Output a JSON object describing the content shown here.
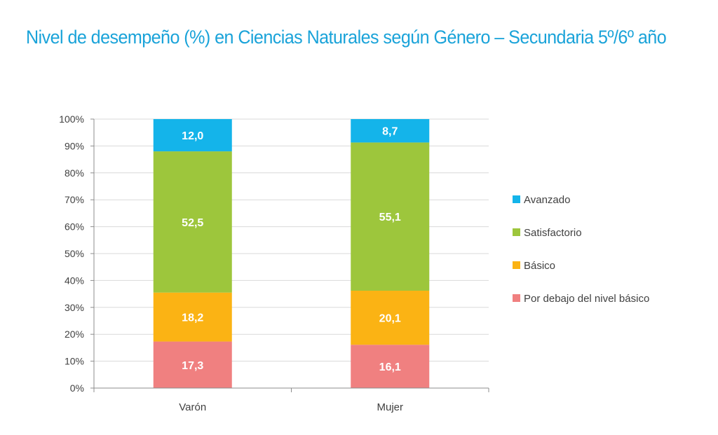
{
  "chart_data": {
    "type": "bar",
    "stacked": true,
    "title": "Nivel de desempeño (%) en Ciencias Naturales según Género  – Secundaria 5º/6º año",
    "categories": [
      "Varón",
      "Mujer"
    ],
    "series": [
      {
        "name": "Por debajo del nivel básico",
        "values": [
          17.3,
          16.1
        ],
        "labels": [
          "17,3",
          "16,1"
        ],
        "color": "#f08080"
      },
      {
        "name": "Básico",
        "values": [
          18.2,
          20.1
        ],
        "labels": [
          "18,2",
          "20,1"
        ],
        "color": "#fbb314"
      },
      {
        "name": "Satisfactorio",
        "values": [
          52.5,
          55.1
        ],
        "labels": [
          "52,5",
          "55,1"
        ],
        "color": "#9dc63c"
      },
      {
        "name": "Avanzado",
        "values": [
          12.0,
          8.7
        ],
        "labels": [
          "12,0",
          "8,7"
        ],
        "color": "#14b4ea"
      }
    ],
    "ylim": [
      0,
      100
    ],
    "yticks": [
      "0%",
      "10%",
      "20%",
      "30%",
      "40%",
      "50%",
      "60%",
      "70%",
      "80%",
      "90%",
      "100%"
    ],
    "grid": true,
    "legend_position": "right",
    "legend_order": [
      "Avanzado",
      "Satisfactorio",
      "Básico",
      "Por debajo del nivel básico"
    ]
  }
}
